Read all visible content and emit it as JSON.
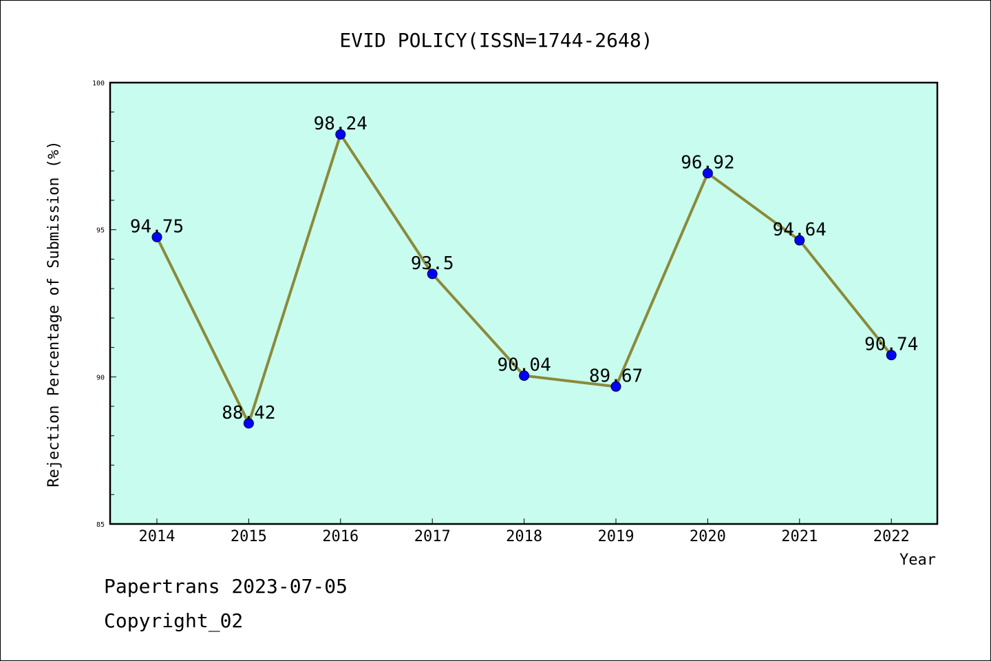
{
  "chart_data": {
    "type": "line",
    "title": "EVID POLICY(ISSN=1744-2648)",
    "xlabel": "Year",
    "ylabel": "Rejection Percentage of Submission (%)",
    "categories": [
      "2014",
      "2015",
      "2016",
      "2017",
      "2018",
      "2019",
      "2020",
      "2021",
      "2022"
    ],
    "series": [
      {
        "values": [
          94.75,
          88.42,
          98.24,
          93.5,
          90.04,
          89.67,
          96.92,
          94.64,
          90.74
        ]
      }
    ],
    "data_labels": [
      "94.75",
      "88.42",
      "98.24",
      "93.5",
      "90.04",
      "89.67",
      "96.92",
      "94.64",
      "90.74"
    ],
    "ylim": [
      85,
      100
    ],
    "yticks": [
      "85",
      "90",
      "95",
      "100"
    ],
    "grid": false,
    "colors": {
      "plot_background": "#c8fcee",
      "line": "#8b8a3a",
      "marker": "#0000ff"
    }
  },
  "footer": {
    "line1": "Papertrans 2023-07-05",
    "line2": "Copyright_02"
  }
}
